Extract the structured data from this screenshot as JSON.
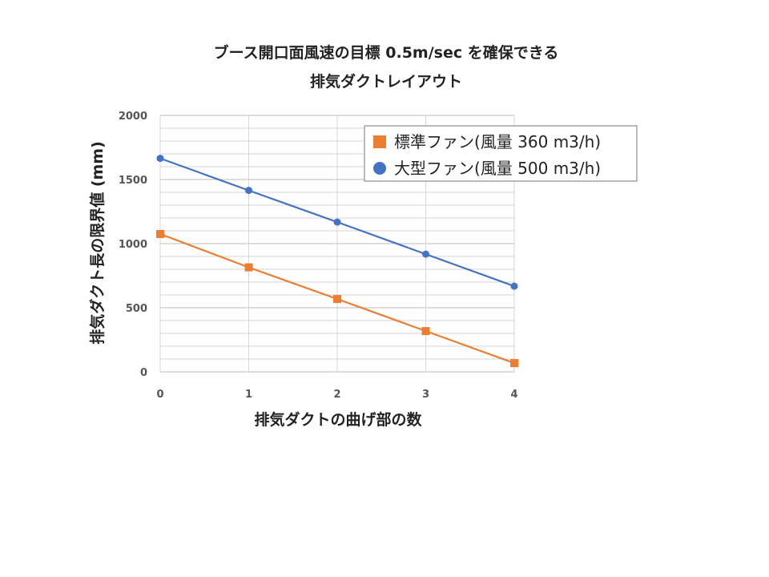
{
  "chart_data": {
    "type": "line",
    "title_line1": "ブース開口面風速の目標 0.5m/sec を確保できる",
    "title_line2": "排気ダクトレイアウト",
    "xlabel": "排気ダクトの曲げ部の数",
    "ylabel": "排気ダクト長の限界値 (mm)",
    "x": [
      0,
      1,
      2,
      3,
      4
    ],
    "x_tick_labels": [
      "0",
      "1",
      "2",
      "3",
      "4"
    ],
    "y_tick_labels": [
      "0",
      "500",
      "1000",
      "1500",
      "2000"
    ],
    "ylim": [
      0,
      2000
    ],
    "grid": true,
    "legend_position": "top-right",
    "series": [
      {
        "name": "標準ファン(風量 360 m3/h)",
        "marker": "square",
        "color": "#ED7D31",
        "values": [
          1075,
          815,
          568,
          318,
          68
        ]
      },
      {
        "name": "大型ファン(風量 500 m3/h)",
        "marker": "circle",
        "color": "#4472C4",
        "values": [
          1665,
          1415,
          1168,
          918,
          668
        ]
      }
    ]
  }
}
